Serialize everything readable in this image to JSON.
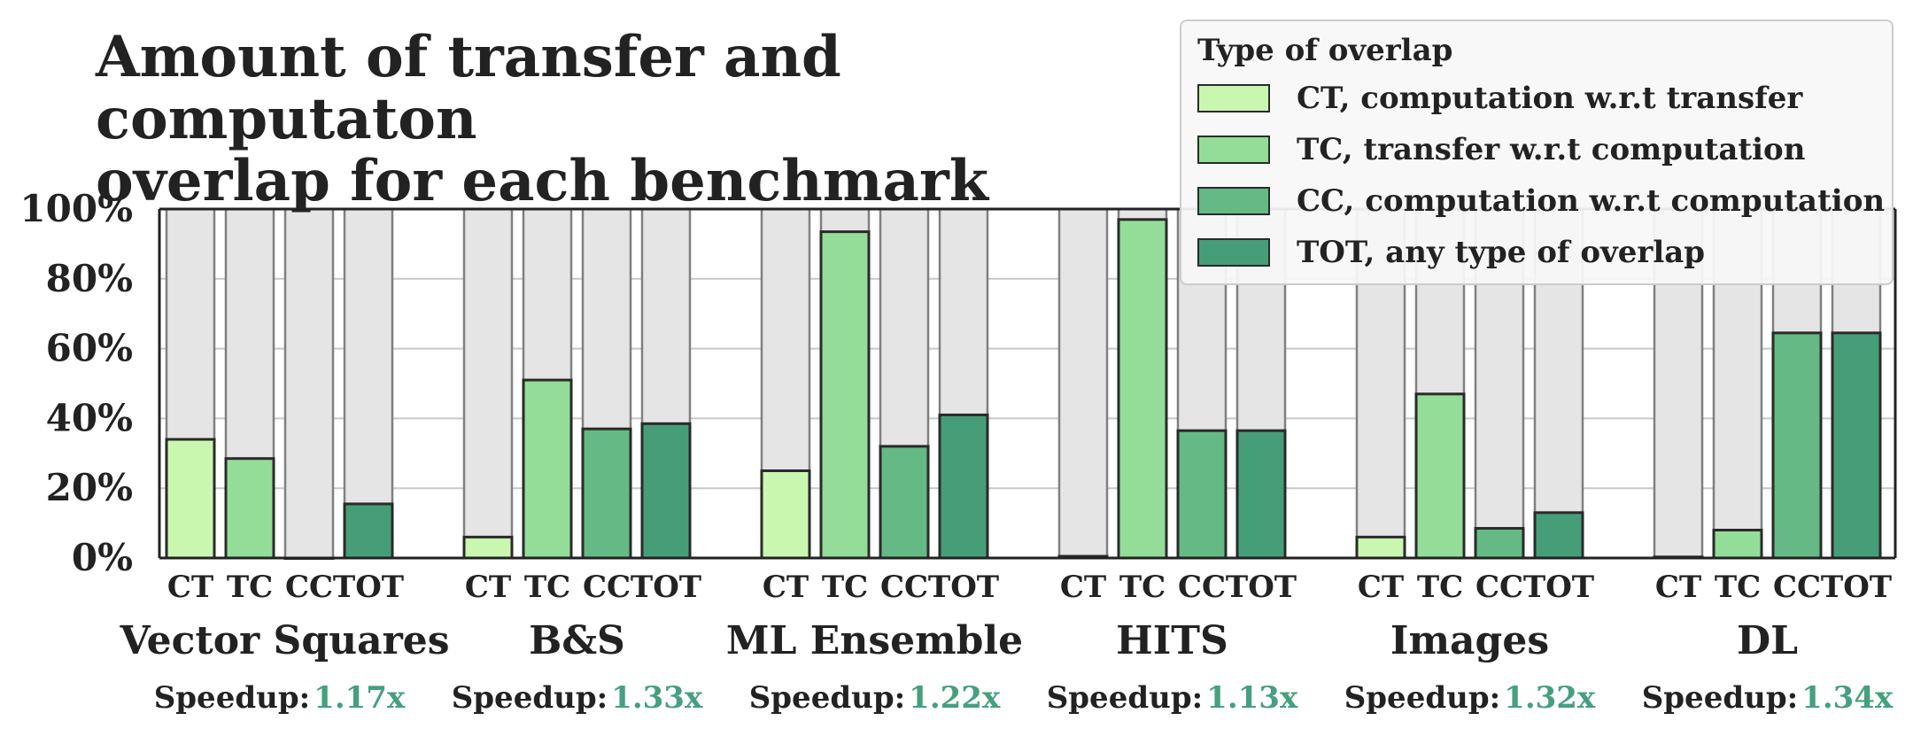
{
  "title_line1": "Amount of transfer and computaton",
  "title_line2": "overlap for each benchmark",
  "legend": {
    "title": "Type of overlap",
    "items": [
      {
        "label": "CT, computation w.r.t transfer",
        "color": "#c9f7b0"
      },
      {
        "label": "TC, transfer w.r.t computation",
        "color": "#93dd98"
      },
      {
        "label": "CC, computation w.r.t computation",
        "color": "#64b984"
      },
      {
        "label": "TOT, any type of overlap",
        "color": "#469e79"
      }
    ]
  },
  "speedup_label": "Speedup:",
  "colors": {
    "background_bar": "#e5e5e5",
    "background_bar_stroke": "#808080",
    "grid": "#c8c8c8",
    "speedup": "#45a07e"
  },
  "chart_data": {
    "type": "bar",
    "ylabel": "",
    "ylim": [
      0,
      100
    ],
    "yticks": [
      "0%",
      "20%",
      "40%",
      "60%",
      "80%",
      "100%"
    ],
    "ytick_values": [
      0,
      20,
      40,
      60,
      80,
      100
    ],
    "grid": true,
    "categories": [
      "CT",
      "TC",
      "CC",
      "TOT"
    ],
    "groups": [
      {
        "name": "Vector Squares",
        "speedup": "1.17x",
        "values": [
          34,
          28.5,
          0,
          15.5
        ]
      },
      {
        "name": "B&S",
        "speedup": "1.33x",
        "values": [
          6,
          51,
          37,
          38.5
        ]
      },
      {
        "name": "ML Ensemble",
        "speedup": "1.22x",
        "values": [
          25,
          93.5,
          32,
          41
        ]
      },
      {
        "name": "HITS",
        "speedup": "1.13x",
        "values": [
          0.5,
          97,
          36.5,
          36.5
        ]
      },
      {
        "name": "Images",
        "speedup": "1.32x",
        "values": [
          6,
          47,
          8.5,
          13
        ]
      },
      {
        "name": "DL",
        "speedup": "1.34x",
        "values": [
          0.3,
          8,
          64.5,
          64.5
        ]
      }
    ]
  }
}
